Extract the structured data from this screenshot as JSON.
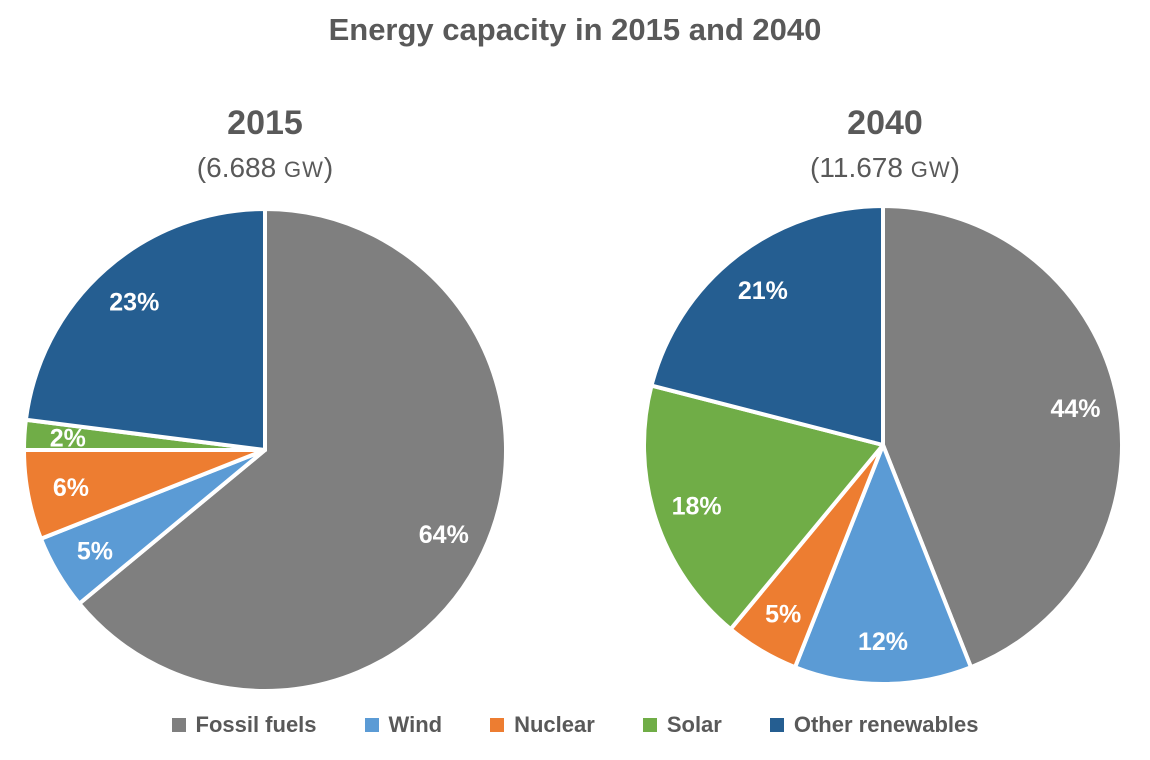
{
  "title": "Energy capacity in 2015 and 2040",
  "text_color": "#595959",
  "slice_label_color": "#FFFFFF",
  "slice_border_color": "#FFFFFF",
  "series_colors": {
    "fossil_fuels": "#7F7F7F",
    "wind": "#5B9BD5",
    "nuclear": "#ED7D31",
    "solar": "#70AD47",
    "other_renewables": "#255E91"
  },
  "legend": [
    {
      "label": "Fossil fuels",
      "color": "#7F7F7F"
    },
    {
      "label": "Wind",
      "color": "#5B9BD5"
    },
    {
      "label": "Nuclear",
      "color": "#ED7D31"
    },
    {
      "label": "Solar",
      "color": "#70AD47"
    },
    {
      "label": "Other renewables",
      "color": "#255E91"
    }
  ],
  "chart_data": [
    {
      "type": "pie",
      "title": "2015",
      "subtitle": "(6.688 GW)",
      "subtitle_prefix": "(6.688 ",
      "subtitle_unit": "GW",
      "subtitle_suffix": ")",
      "total_label": "6.688 GW",
      "start_angle_deg": 0,
      "direction": "clockwise",
      "categories": [
        "Fossil fuels",
        "Wind",
        "Nuclear",
        "Solar",
        "Other renewables"
      ],
      "values": [
        64,
        5,
        6,
        2,
        23
      ],
      "labels": [
        "64%",
        "5%",
        "6%",
        "2%",
        "23%"
      ],
      "colors": [
        "#7F7F7F",
        "#5B9BD5",
        "#ED7D31",
        "#70AD47",
        "#255E91"
      ]
    },
    {
      "type": "pie",
      "title": "2040",
      "subtitle": "(11.678 GW)",
      "subtitle_prefix": "(11.678 ",
      "subtitle_unit": "GW",
      "subtitle_suffix": ")",
      "total_label": "11.678 GW",
      "start_angle_deg": 0,
      "direction": "clockwise",
      "categories": [
        "Fossil fuels",
        "Wind",
        "Nuclear",
        "Solar",
        "Other renewables"
      ],
      "values": [
        44,
        12,
        5,
        18,
        21
      ],
      "labels": [
        "44%",
        "12%",
        "5%",
        "18%",
        "21%"
      ],
      "colors": [
        "#7F7F7F",
        "#5B9BD5",
        "#ED7D31",
        "#70AD47",
        "#255E91"
      ]
    }
  ]
}
